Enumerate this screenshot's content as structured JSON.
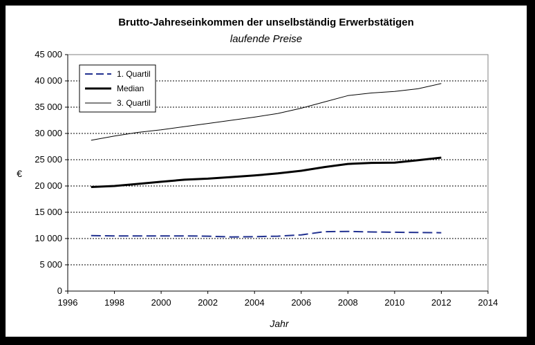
{
  "chart_data": {
    "type": "line",
    "title": "Brutto-Jahreseinkommen der unselbständig Erwerbstätigen",
    "subtitle": "laufende Preise",
    "xlabel": "Jahr",
    "ylabel": "€",
    "xlim": [
      1996,
      2014
    ],
    "ylim": [
      0,
      45000
    ],
    "x_ticks": [
      1996,
      1998,
      2000,
      2002,
      2004,
      2006,
      2008,
      2010,
      2012,
      2014
    ],
    "y_ticks": [
      0,
      5000,
      10000,
      15000,
      20000,
      25000,
      30000,
      35000,
      40000,
      45000
    ],
    "y_tick_labels": [
      "0",
      "5 000",
      "10 000",
      "15 000",
      "20 000",
      "25 000",
      "30 000",
      "35 000",
      "40 000",
      "45 000"
    ],
    "grid": "horizontal dotted",
    "legend_position": "top-left",
    "x": [
      1997,
      1998,
      1999,
      2000,
      2001,
      2002,
      2003,
      2004,
      2005,
      2006,
      2007,
      2008,
      2009,
      2010,
      2011,
      2012
    ],
    "series": [
      {
        "name": "1. Quartil",
        "style": "dashed",
        "color": "#1f2f8f",
        "values": [
          10550,
          10500,
          10500,
          10500,
          10500,
          10450,
          10300,
          10350,
          10450,
          10700,
          11300,
          11350,
          11250,
          11200,
          11150,
          11100
        ]
      },
      {
        "name": "Median",
        "style": "thick",
        "color": "#000000",
        "values": [
          19800,
          20000,
          20400,
          20800,
          21200,
          21400,
          21700,
          22000,
          22400,
          22900,
          23600,
          24200,
          24400,
          24450,
          24900,
          25400
        ]
      },
      {
        "name": "3. Quartil",
        "style": "thin",
        "color": "#000000",
        "values": [
          28700,
          29500,
          30200,
          30700,
          31300,
          31900,
          32500,
          33100,
          33800,
          34800,
          36000,
          37200,
          37700,
          38000,
          38500,
          39500
        ]
      }
    ]
  }
}
